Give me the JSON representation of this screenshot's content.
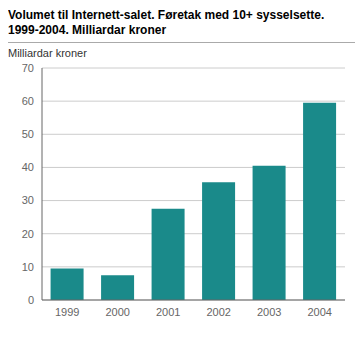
{
  "chart_data": {
    "type": "bar",
    "title": "Volumet til Internett-salet. Føretak med 10+ sysselsette.\n1999-2004. Milliardar kroner",
    "ylabel": "Milliardar kroner",
    "categories": [
      "1999",
      "2000",
      "2001",
      "2002",
      "2003",
      "2004"
    ],
    "values": [
      9.5,
      7.5,
      27.5,
      35.5,
      40.5,
      59.5
    ],
    "color": "#1a8a8a",
    "ylim": [
      0,
      70
    ],
    "yticks": [
      0,
      10,
      20,
      30,
      40,
      50,
      60,
      70
    ],
    "grid": true
  }
}
